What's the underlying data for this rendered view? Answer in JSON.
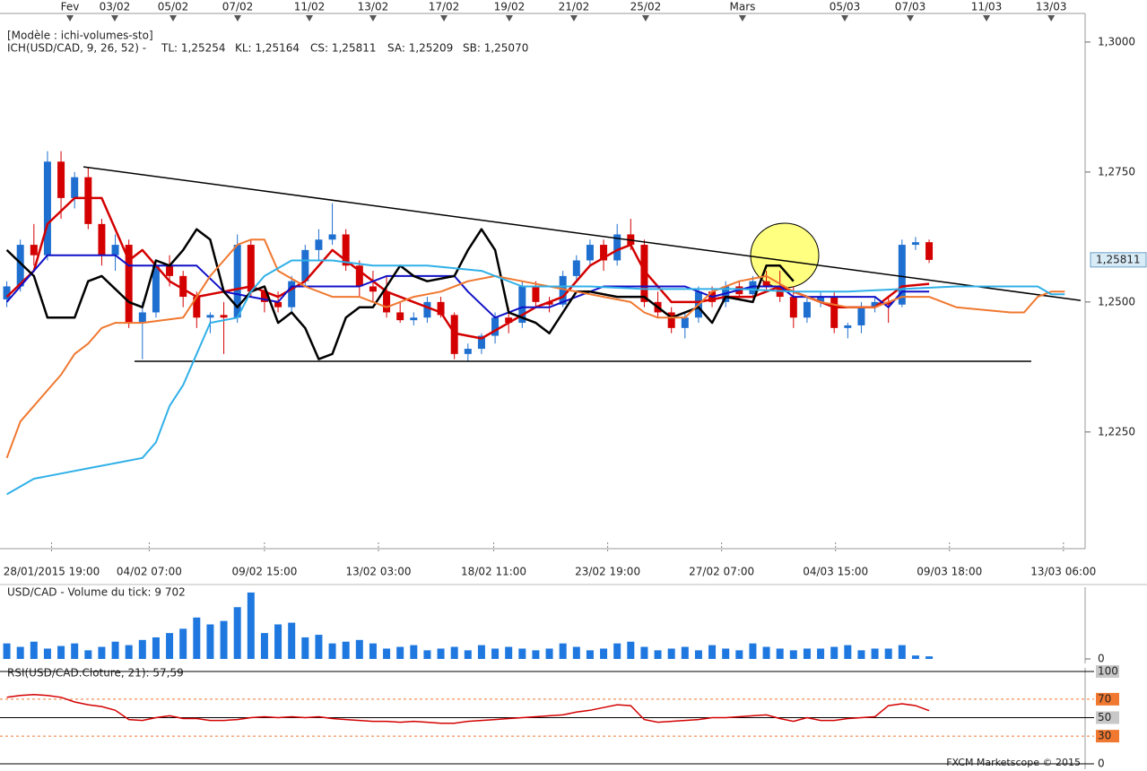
{
  "chart_data": [
    {
      "type": "candlestick",
      "subtitle": "[Modèle : ichi-volumes-sto]",
      "title": "ICH(USD/CAD, 9, 26, 52) -",
      "title_color": "#d40000",
      "subtitle_color": "#1e6fd0",
      "xlim": [
        -0.5,
        79.5
      ],
      "xticks": [
        {
          "value": 3.3,
          "label": "28/01/2015 19:00"
        },
        {
          "value": 10.5,
          "label": "04/02 07:00"
        },
        {
          "value": 19.0,
          "label": "09/02 15:00"
        },
        {
          "value": 27.4,
          "label": "13/02 03:00"
        },
        {
          "value": 35.9,
          "label": "18/02 11:00"
        },
        {
          "value": 44.3,
          "label": "23/02 19:00"
        },
        {
          "value": 52.7,
          "label": "27/02 07:00"
        },
        {
          "value": 61.1,
          "label": "04/03 15:00"
        },
        {
          "value": 69.5,
          "label": "09/03 18:00"
        },
        {
          "value": 77.9,
          "label": "13/03 06:00"
        }
      ],
      "top_xticks": [
        {
          "value": 4.66,
          "label": "Fev"
        },
        {
          "value": 7.96,
          "label": "03/02"
        },
        {
          "value": 12.26,
          "label": "05/02"
        },
        {
          "value": 17.02,
          "label": "07/02"
        },
        {
          "value": 22.31,
          "label": "11/02"
        },
        {
          "value": 27.0,
          "label": "13/02"
        },
        {
          "value": 32.23,
          "label": "17/02"
        },
        {
          "value": 37.05,
          "label": "19/02"
        },
        {
          "value": 41.81,
          "label": "21/02"
        },
        {
          "value": 47.1,
          "label": "25/02"
        },
        {
          "value": 54.24,
          "label": "Mars"
        },
        {
          "value": 61.78,
          "label": "05/03"
        },
        {
          "value": 66.61,
          "label": "07/03"
        },
        {
          "value": 72.23,
          "label": "11/03"
        },
        {
          "value": 77.0,
          "label": "13/03"
        }
      ],
      "ylim": [
        1.2029,
        1.3055
      ],
      "yticks": [
        {
          "value": 1.225,
          "label": "1,2250"
        },
        {
          "value": 1.25,
          "label": "1,2500"
        },
        {
          "value": 1.275,
          "label": "1,2750"
        },
        {
          "value": 1.3,
          "label": "1,3000"
        }
      ],
      "last_price": {
        "value": 1.25811,
        "label": "1,25811"
      },
      "up_color": "#1e6fd0",
      "down_color": "#d40000",
      "open": [
        1.2505,
        1.253,
        1.261,
        1.259,
        1.277,
        1.27,
        1.274,
        1.265,
        1.259,
        1.261,
        1.246,
        1.248,
        1.257,
        1.255,
        1.251,
        1.247,
        1.2475,
        1.247,
        1.261,
        1.252,
        1.25,
        1.249,
        1.254,
        1.26,
        1.262,
        1.263,
        1.257,
        1.253,
        1.252,
        1.248,
        1.2465,
        1.247,
        1.25,
        1.2475,
        1.24,
        1.241,
        1.2435,
        1.247,
        1.246,
        1.253,
        1.25,
        1.2495,
        1.255,
        1.258,
        1.261,
        1.258,
        1.263,
        1.261,
        1.25,
        1.248,
        1.245,
        1.247,
        1.252,
        1.25,
        1.253,
        1.2515,
        1.254,
        1.253,
        1.251,
        1.247,
        1.25,
        1.251,
        1.245,
        1.2455,
        1.249,
        1.25,
        1.2495,
        1.261,
        1.2615
      ],
      "high": [
        1.254,
        1.262,
        1.265,
        1.279,
        1.279,
        1.275,
        1.276,
        1.266,
        1.263,
        1.262,
        1.25,
        1.258,
        1.259,
        1.256,
        1.252,
        1.248,
        1.25,
        1.263,
        1.262,
        1.253,
        1.252,
        1.255,
        1.261,
        1.264,
        1.269,
        1.264,
        1.258,
        1.256,
        1.255,
        1.25,
        1.248,
        1.251,
        1.251,
        1.248,
        1.242,
        1.244,
        1.248,
        1.249,
        1.254,
        1.254,
        1.251,
        1.256,
        1.259,
        1.262,
        1.262,
        1.265,
        1.266,
        1.262,
        1.252,
        1.249,
        1.248,
        1.253,
        1.253,
        1.254,
        1.254,
        1.255,
        1.256,
        1.256,
        1.253,
        1.251,
        1.252,
        1.252,
        1.246,
        1.25,
        1.251,
        1.251,
        1.262,
        1.2625,
        1.262
      ],
      "low": [
        1.249,
        1.252,
        1.257,
        1.258,
        1.266,
        1.268,
        1.264,
        1.257,
        1.256,
        1.245,
        1.239,
        1.247,
        1.253,
        1.249,
        1.245,
        1.244,
        1.24,
        1.246,
        1.251,
        1.248,
        1.248,
        1.248,
        1.253,
        1.258,
        1.261,
        1.256,
        1.251,
        1.25,
        1.247,
        1.246,
        1.2455,
        1.246,
        1.247,
        1.239,
        1.2385,
        1.24,
        1.242,
        1.244,
        1.245,
        1.249,
        1.248,
        1.249,
        1.254,
        1.257,
        1.256,
        1.257,
        1.26,
        1.249,
        1.247,
        1.244,
        1.243,
        1.246,
        1.249,
        1.249,
        1.2505,
        1.251,
        1.252,
        1.25,
        1.245,
        1.246,
        1.249,
        1.244,
        1.243,
        1.244,
        1.248,
        1.246,
        1.249,
        1.26,
        1.2575
      ],
      "close": [
        1.253,
        1.261,
        1.259,
        1.277,
        1.27,
        1.274,
        1.265,
        1.259,
        1.261,
        1.246,
        1.248,
        1.257,
        1.255,
        1.251,
        1.247,
        1.2475,
        1.247,
        1.261,
        1.252,
        1.25,
        1.249,
        1.254,
        1.26,
        1.262,
        1.263,
        1.257,
        1.253,
        1.252,
        1.248,
        1.2465,
        1.247,
        1.25,
        1.2475,
        1.24,
        1.241,
        1.2435,
        1.247,
        1.246,
        1.253,
        1.25,
        1.2495,
        1.255,
        1.258,
        1.261,
        1.258,
        1.263,
        1.261,
        1.25,
        1.248,
        1.245,
        1.247,
        1.252,
        1.25,
        1.253,
        1.2515,
        1.254,
        1.253,
        1.251,
        1.247,
        1.25,
        1.251,
        1.245,
        1.2455,
        1.249,
        1.25,
        1.2495,
        1.261,
        1.2615,
        1.2581
      ],
      "series": [
        {
          "name": "TL: 1,25254",
          "color": "#d40000",
          "width": 2.5,
          "x": [
            0,
            2,
            3,
            5,
            7,
            8,
            9,
            10,
            12,
            14,
            16,
            18,
            20,
            22,
            24,
            26,
            28,
            30,
            32,
            33,
            35,
            37,
            39,
            41,
            43,
            45,
            46,
            47,
            49,
            51,
            53,
            55,
            57,
            59,
            61,
            64,
            66,
            68
          ],
          "values": [
            1.251,
            1.256,
            1.265,
            1.27,
            1.27,
            1.264,
            1.258,
            1.26,
            1.254,
            1.251,
            1.252,
            1.253,
            1.251,
            1.254,
            1.26,
            1.256,
            1.252,
            1.25,
            1.248,
            1.244,
            1.243,
            1.246,
            1.249,
            1.251,
            1.257,
            1.26,
            1.261,
            1.256,
            1.25,
            1.25,
            1.251,
            1.251,
            1.253,
            1.251,
            1.249,
            1.249,
            1.253,
            1.2535
          ]
        },
        {
          "name": "KL: 1,25164",
          "color": "#1010c8",
          "width": 2,
          "x": [
            0,
            3,
            8,
            9,
            11,
            14,
            16,
            18,
            20,
            21,
            24,
            26,
            28,
            33,
            34,
            36,
            38,
            40,
            42,
            44,
            50,
            52,
            55,
            57,
            58,
            61,
            64,
            65,
            66,
            68
          ],
          "values": [
            1.25,
            1.259,
            1.259,
            1.257,
            1.257,
            1.257,
            1.252,
            1.251,
            1.25,
            1.253,
            1.253,
            1.253,
            1.255,
            1.255,
            1.252,
            1.247,
            1.249,
            1.249,
            1.251,
            1.253,
            1.253,
            1.251,
            1.253,
            1.253,
            1.251,
            1.251,
            1.251,
            1.249,
            1.252,
            1.252
          ]
        },
        {
          "name": "CS: 1,25811",
          "color": "#000000",
          "width": 2.5,
          "x": [
            0,
            2,
            3,
            5,
            6,
            7,
            9,
            10,
            11,
            12,
            13,
            14,
            15,
            16,
            17,
            18,
            19,
            20,
            21,
            22,
            23,
            24,
            25,
            26,
            27,
            28,
            29,
            30,
            31,
            33,
            34,
            35,
            36,
            37,
            38,
            39,
            40,
            41,
            42,
            43,
            45,
            47,
            49,
            51,
            52,
            53,
            55,
            56,
            57,
            58
          ],
          "values": [
            1.26,
            1.255,
            1.247,
            1.247,
            1.254,
            1.255,
            1.25,
            1.249,
            1.258,
            1.257,
            1.26,
            1.264,
            1.262,
            1.252,
            1.249,
            1.252,
            1.253,
            1.246,
            1.248,
            1.245,
            1.239,
            1.24,
            1.247,
            1.249,
            1.249,
            1.253,
            1.257,
            1.255,
            1.254,
            1.255,
            1.26,
            1.264,
            1.26,
            1.248,
            1.247,
            1.246,
            1.244,
            1.248,
            1.252,
            1.252,
            1.251,
            1.251,
            1.247,
            1.249,
            1.246,
            1.251,
            1.25,
            1.257,
            1.257,
            1.254
          ]
        },
        {
          "name": "SA: 1,25209",
          "color": "#f07830",
          "width": 2,
          "x": [
            0,
            1,
            2,
            3,
            4,
            5,
            6,
            7,
            8,
            10,
            13,
            15,
            16,
            17,
            18,
            19,
            20,
            22,
            24,
            26,
            28,
            30,
            32,
            34,
            36,
            38,
            40,
            42,
            44,
            46,
            47,
            48,
            50,
            52,
            54,
            56,
            58,
            60,
            62,
            64,
            66,
            68,
            70,
            74,
            75,
            76,
            77,
            78
          ],
          "values": [
            1.22,
            1.227,
            1.23,
            1.233,
            1.236,
            1.24,
            1.242,
            1.245,
            1.246,
            1.246,
            1.247,
            1.255,
            1.258,
            1.261,
            1.262,
            1.262,
            1.256,
            1.253,
            1.251,
            1.251,
            1.249,
            1.251,
            1.252,
            1.254,
            1.255,
            1.254,
            1.253,
            1.252,
            1.251,
            1.25,
            1.248,
            1.247,
            1.247,
            1.252,
            1.254,
            1.255,
            1.252,
            1.25,
            1.249,
            1.249,
            1.251,
            1.251,
            1.249,
            1.248,
            1.248,
            1.251,
            1.252,
            1.252
          ]
        },
        {
          "name": "SB: 1,25070",
          "color": "#30b0e8",
          "width": 2,
          "x": [
            0,
            2,
            4,
            6,
            8,
            10,
            11,
            12,
            13,
            14,
            15,
            17,
            18,
            19,
            21,
            24,
            27,
            31,
            35,
            38,
            40,
            43,
            47,
            50,
            54,
            58,
            62,
            66,
            70,
            76,
            77,
            78
          ],
          "values": [
            1.213,
            1.216,
            1.217,
            1.218,
            1.219,
            1.22,
            1.223,
            1.23,
            1.234,
            1.24,
            1.246,
            1.247,
            1.252,
            1.255,
            1.258,
            1.258,
            1.257,
            1.257,
            1.256,
            1.253,
            1.253,
            1.253,
            1.2525,
            1.2525,
            1.2525,
            1.252,
            1.252,
            1.2525,
            1.253,
            1.253,
            1.2515,
            1.2515
          ]
        }
      ],
      "trendlines": [
        {
          "x": [
            5.65,
            79.17
          ],
          "values": [
            1.276,
            1.2503
          ]
        },
        {
          "x": [
            9.42,
            75.53
          ],
          "values": [
            1.2386,
            1.2386
          ]
        }
      ]
    },
    {
      "type": "bar",
      "title": "USD/CAD - Volume du tick: 9 702",
      "title_color": "#1e90e0",
      "color": "#1e78e0",
      "xlim": [
        -0.5,
        79.5
      ],
      "ylim": [
        0,
        80
      ],
      "yticks": [
        0
      ],
      "values": [
        18,
        14,
        20,
        12,
        15,
        18,
        10,
        14,
        20,
        16,
        22,
        25,
        30,
        35,
        48,
        40,
        44,
        60,
        77,
        30,
        40,
        42,
        25,
        28,
        18,
        20,
        22,
        18,
        12,
        14,
        16,
        10,
        12,
        14,
        10,
        16,
        12,
        14,
        12,
        10,
        12,
        18,
        14,
        10,
        12,
        18,
        20,
        14,
        10,
        12,
        14,
        10,
        16,
        12,
        10,
        18,
        14,
        12,
        10,
        12,
        12,
        14,
        16,
        10,
        12,
        12,
        16,
        4,
        3
      ]
    },
    {
      "type": "line",
      "title": "RSI(USD/CAD.Cloture, 21): 57,59",
      "title_color": "#d40000",
      "color": "#d40000",
      "band": [
        30,
        70
      ],
      "band_color": "#f07830",
      "xlim": [
        -0.5,
        79.5
      ],
      "ylim": [
        0,
        100
      ],
      "yticks": [
        0,
        30,
        50,
        70,
        100
      ],
      "values": [
        72,
        74,
        75,
        74,
        72,
        67,
        64,
        62,
        58,
        48,
        47,
        50,
        52,
        49,
        49,
        47,
        47,
        48,
        50,
        51,
        50,
        51,
        50,
        51,
        49,
        48,
        47,
        46,
        46,
        45,
        46,
        45,
        44,
        44,
        46,
        47,
        48,
        49,
        50,
        51,
        52,
        53,
        56,
        58,
        61,
        64,
        63,
        48,
        45,
        46,
        47,
        48,
        50,
        50,
        51,
        52,
        53,
        49,
        46,
        50,
        47,
        47,
        49,
        50,
        51,
        63,
        65,
        63,
        57.59
      ]
    }
  ],
  "footer": "FXCM Marketscope © 2015"
}
